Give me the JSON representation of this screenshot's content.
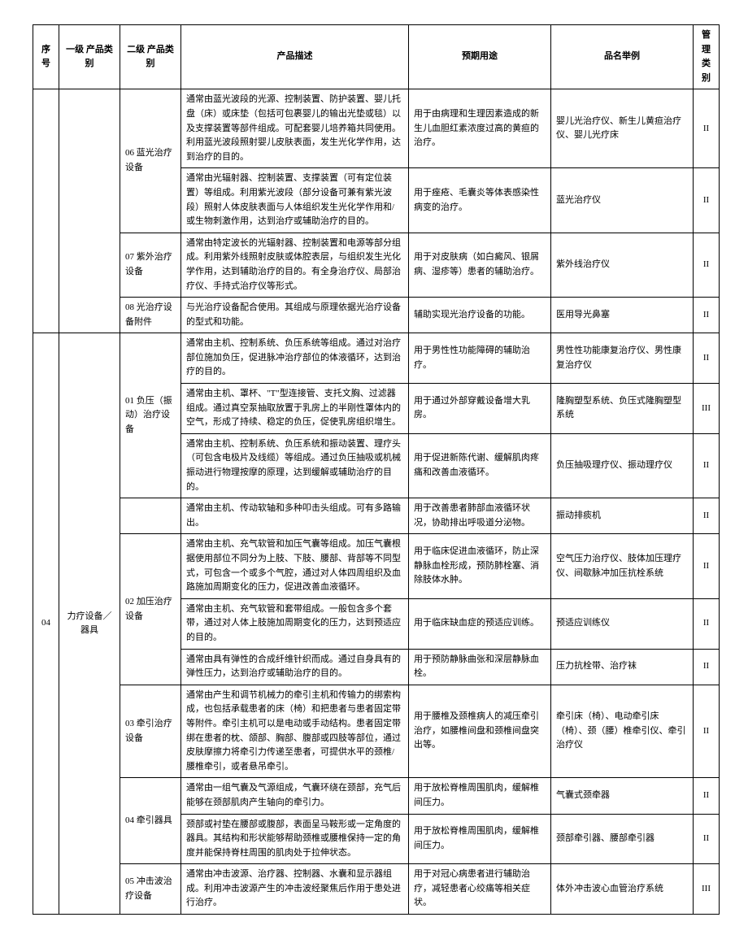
{
  "headers": {
    "seq": "序号",
    "level1": "一级\n产品类别",
    "level2": "二级\n产品类别",
    "desc": "产品描述",
    "use": "预期用途",
    "example": "品名举例",
    "mgmt": "管理\n类别"
  },
  "rows": [
    {
      "l2": "06 蓝光治疗设备",
      "l2_span": 1,
      "desc": "通常由蓝光波段的光源、控制装置、防护装置、婴儿托盘（床）或床垫（包括可包裹婴儿的输出光垫或毯）以及支撑装置等部件组成。可配套婴儿培养箱共同使用。利用蓝光波段照射婴儿皮肤表面，发生光化学作用，达到治疗的目的。",
      "use": "用于由病理和生理因素造成的新生儿血胆红素浓度过高的黄疸的治疗。",
      "ex": "婴儿光治疗仪、新生儿黄疸治疗仪、婴儿光疗床",
      "mg": "II"
    },
    {
      "l2": "",
      "l2_span": 0,
      "desc": "通常由光辐射器、控制装置、支撑装置（可有定位装置）等组成。利用紫光波段（部分设备可兼有紫光波段）照射人体皮肤表面与人体组织发生光化学作用和/或生物刺激作用，达到治疗或辅助治疗的目的。",
      "use": "用于痤疮、毛囊炎等体表感染性病变的治疗。",
      "ex": "蓝光治疗仪",
      "mg": "II",
      "l2_override": ""
    },
    {
      "l2": "07 紫外治疗设备",
      "l2_span": 1,
      "desc": "通常由特定波长的光辐射器、控制装置和电源等部分组成。利用紫外线照射皮肤或体腔表层，与组织发生光化学作用，达到辅助治疗的目的。有全身治疗仪、局部治疗仪、手持式治疗仪等形式。",
      "use": "用于对皮肤病（如白癜风、银屑病、湿疹等）患者的辅助治疗。",
      "ex": "紫外线治疗仪",
      "mg": "II"
    },
    {
      "l2": "08 光治疗设备附件",
      "l2_span": 1,
      "desc": "与光治疗设备配合使用。其组成与原理依据光治疗设备的型式和功能。",
      "use": "辅助实现光治疗设备的功能。",
      "ex": "医用导光鼻塞",
      "mg": "II"
    },
    {
      "l2": "01 负压（振动）治疗设备",
      "l2_span": 3,
      "desc": "通常由主机、控制系统、负压系统等组成。通过对治疗部位施加负压，促进脉冲治疗部位的体液循环，达到治疗的目的。",
      "use": "用于男性性功能障碍的辅助治疗。",
      "ex": "男性性功能康复治疗仪、男性康复治疗仪",
      "mg": "II"
    },
    {
      "l2": "",
      "l2_span": 0,
      "desc": "通常由主机、罩杯、\"T\"型连接管、支托文胸、过滤器组成。通过真空泵抽取放置于乳房上的半刚性罩体内的空气，形成了持续、稳定的负压，促使乳房组织增生。",
      "use": "用于通过外部穿戴设备增大乳房。",
      "ex": "隆胸塑型系统、负压式隆胸塑型系统",
      "mg": "III"
    },
    {
      "l2": "",
      "l2_span": 0,
      "desc": "通常由主机、控制系统、负压系统和振动装置、理疗头（可包含电极片及线缆）等组成。通过负压抽吸或机械振动进行物理按摩的原理，达到缓解或辅助治疗的目的。",
      "use": "用于促进新陈代谢、缓解肌肉疼痛和改善血液循环。",
      "ex": "负压抽吸理疗仪、振动理疗仪",
      "mg": "II"
    },
    {
      "l2": "",
      "l2_span": 1,
      "desc": "通常由主机、传动软轴和多种叩击头组成。可有多路输出。",
      "use": "用于改善患者肺部血液循环状况，协助排出呼吸道分泌物。",
      "ex": "振动排痰机",
      "mg": "II",
      "l2_blank": true
    },
    {
      "l2": "02 加压治疗设备",
      "l2_span": 3,
      "desc": "通常由主机、充气软管和加压气囊等组成。加压气囊根据使用部位不同分为上肢、下肢、腰部、背部等不同型式，可包含一个或多个气腔，通过对人体四周组织及血路施加周期变化的压力，促进改善血液循环。",
      "use": "用于临床促进血液循环，防止深静脉血栓形成，预防肺栓塞、消除肢体水肿。",
      "ex": "空气压力治疗仪、肢体加压理疗仪、间歇脉冲加压抗栓系统",
      "mg": "II"
    },
    {
      "l2": "",
      "l2_span": 0,
      "desc": "通常由主机、充气软管和套带组成。一般包含多个套带，通过对人体上肢施加周期变化的压力，达到预适应的目的。",
      "use": "用于临床缺血症的预适应训练。",
      "ex": "预适应训练仪",
      "mg": "II"
    },
    {
      "l2": "",
      "l2_span": 0,
      "desc": "通常由具有弹性的合成纤维针织而成。通过自身具有的弹性压力，达到治疗或辅助治疗的目的。",
      "use": "用于预防静脉曲张和深层静脉血栓。",
      "ex": "压力抗栓带、治疗袜",
      "mg": "II"
    },
    {
      "l2": "03 牵引治疗设备",
      "l2_span": 1,
      "desc": "通常由产生和调节机械力的牵引主机和传输力的绑索构成，也包括承载患者的床（椅）和把患者与患者固定带等附件。牵引主机可以是电动或手动结构。患者固定带绑在患者的枕、颌部、胸部、腹部或四肢等部位，通过皮肤摩擦力将牵引力传递至患者，可提供水平的颈椎/腰椎牵引，或者悬吊牵引。",
      "use": "用于腰椎及颈椎病人的减压牵引治疗，如腰椎间盘和颈椎间盘突出等。",
      "ex": "牵引床（椅）、电动牵引床（椅）、颈（腰）椎牵引仪、牵引治疗仪",
      "mg": "II"
    },
    {
      "l2": "04 牵引器具",
      "l2_span": 2,
      "desc": "通常由一组气囊及气源组成，气囊环绕在颈部，充气后能够在颈部肌肉产生轴向的牵引力。",
      "use": "用于放松脊椎周围肌肉，缓解椎间压力。",
      "ex": "气囊式颈牵器",
      "mg": "II"
    },
    {
      "l2": "",
      "l2_span": 0,
      "desc": "颈部或衬垫在腰部或腹部，表面呈马鞍形或一定角度的器具。其结构和形状能够帮助颈椎或腰椎保持一定的角度并能保持脊柱周围的肌肉处于拉伸状态。",
      "use": "用于放松脊椎周围肌肉，缓解椎间压力。",
      "ex": "颈部牵引器、腰部牵引器",
      "mg": "II"
    },
    {
      "l2": "05 冲击波治疗设备",
      "l2_span": 1,
      "desc": "通常由冲击波源、治疗器、控制器、水囊和显示器组成。利用冲击波源产生的冲击波经聚焦后作用于患处进行治疗。",
      "use": "用于对冠心病患者进行辅助治疗，减轻患者心绞痛等相关症状。",
      "ex": "体外冲击波心血管治疗系统",
      "mg": "III"
    }
  ],
  "outer": {
    "seq": "04",
    "level1": "力疗设备／器具"
  }
}
